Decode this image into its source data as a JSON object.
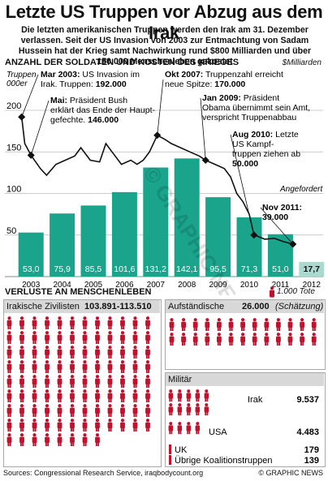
{
  "title": "Letzte US Truppen vor Abzug aus dem Irak",
  "subtitle": "Die letzten amerikanischen Truppen werden den Irak am 31. Dezember verlassen. Seit der US Invasion von 2003 zur Entmachtung von Sadam Hussein hat der Krieg samt Nachwirkung rund $800 Milliarden und über 150.000 Menschenleben gekostet",
  "section1": {
    "title": "Anzahl der Soldaten und Kosten des Krieges",
    "unit_right": "$Milliarden",
    "unit_left_1": "Truppen",
    "unit_left_2": "000er"
  },
  "chart_data": [
    {
      "type": "bar",
      "name": "Kriegskosten",
      "categories": [
        "2003",
        "2004",
        "2005",
        "2006",
        "2007",
        "2008",
        "2009",
        "2010",
        "2011",
        "2012"
      ],
      "values": [
        53.0,
        75.9,
        85.5,
        101.6,
        131.2,
        142.1,
        95.5,
        71.3,
        51.0,
        17.7
      ],
      "value_labels": [
        "53,0",
        "75,9",
        "85,5",
        "101,6",
        "131,2",
        "142,1",
        "95,5",
        "71,3",
        "51,0",
        "17,7"
      ],
      "ylim": [
        0,
        200
      ],
      "yticks": [
        50,
        100,
        150,
        200
      ],
      "bar_color": "#1aa48c",
      "requested_color": "#a9d9cf",
      "requested_label": "Angefordert"
    },
    {
      "type": "line",
      "name": "US-Truppen im Irak",
      "x": [
        2003.2,
        2003.3,
        2003.5,
        2003.8,
        2004.0,
        2004.3,
        2004.6,
        2004.9,
        2005.1,
        2005.4,
        2005.7,
        2005.9,
        2006.1,
        2006.4,
        2006.7,
        2006.9,
        2007.1,
        2007.3,
        2007.55,
        2007.8,
        2008.0,
        2008.3,
        2008.6,
        2008.9,
        2009.1,
        2009.4,
        2009.7,
        2009.9,
        2010.1,
        2010.3,
        2010.5,
        2010.65,
        2010.8,
        2011.0,
        2011.3,
        2011.6,
        2011.9
      ],
      "y": [
        192,
        160,
        146,
        130,
        122,
        135,
        140,
        145,
        155,
        140,
        138,
        160,
        150,
        135,
        140,
        135,
        140,
        150,
        170,
        165,
        160,
        155,
        150,
        145,
        140,
        135,
        130,
        120,
        100,
        90,
        75,
        50,
        48,
        45,
        46,
        42,
        39
      ],
      "ylim": [
        0,
        200
      ],
      "line_color": "#111111"
    }
  ],
  "annotations": [
    {
      "lines": [
        "Mar 2003: US Invasion im",
        "Irak. Truppen: 192.000"
      ],
      "bold_parts": [
        "Mar 2003:",
        "192.000"
      ]
    },
    {
      "lines": [
        "Mai: Präsident Bush",
        "erklärt das Ende der Haupt-",
        "gefechte. 146.000"
      ]
    },
    {
      "lines": [
        "Okt 2007: Truppenzahl erreicht",
        "neue Spitze: 170.000"
      ]
    },
    {
      "lines": [
        "Jan 2009: Präsident",
        "Obama übernimmt sein Amt,",
        "verspricht Truppenabbau"
      ]
    },
    {
      "lines": [
        "Aug 2010: Letzte",
        "US Kampf-",
        "truppen ziehen ab",
        "50.000"
      ]
    },
    {
      "lines": [
        "Nov 2011:",
        "39.000"
      ]
    }
  ],
  "section2": {
    "title": "Verluste an Menschenleben",
    "legend": "1.000 Tote"
  },
  "casualties": {
    "civilians": {
      "label": "Irakische Zivilisten",
      "value": "103.891-113.510",
      "count": 104
    },
    "insurgents": {
      "label": "Aufständische",
      "value": "26.000",
      "note": "(Schätzung)",
      "count": 26
    },
    "military_label": "Militär",
    "military": [
      {
        "label": "Irak",
        "value": "9.537",
        "count": 10
      },
      {
        "label": "USA",
        "value": "4.483",
        "count": 4
      },
      {
        "label": "UK",
        "value": "179",
        "count": 1
      },
      {
        "label": "Übrige Koalitionstruppen",
        "value": "139",
        "count": 1
      }
    ],
    "figure_color": "#c0122c"
  },
  "sources": "Sources: Congressional Research Service, iraqbodycount.org",
  "credit": "© GRAPHIC NEWS",
  "watermark": "© GRAPHIC NEWS"
}
